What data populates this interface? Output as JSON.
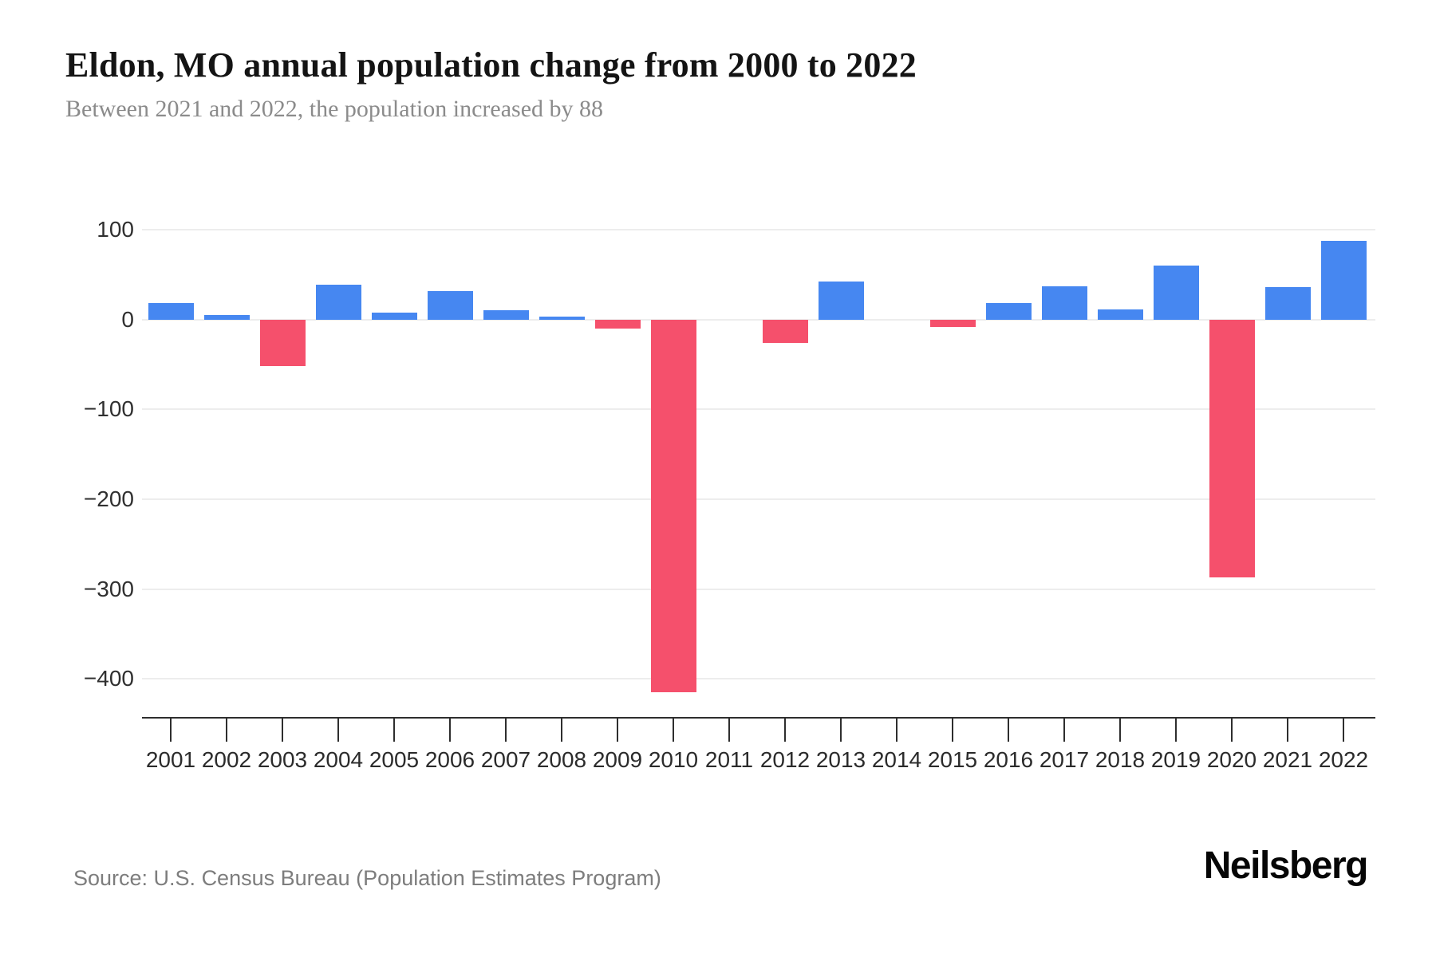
{
  "header": {
    "title": "Eldon, MO annual population change from 2000 to 2022",
    "subtitle": "Between 2021 and 2022, the population increased by 88"
  },
  "footer": {
    "source": "Source: U.S. Census Bureau (Population Estimates Program)",
    "brand": "Neilsberg"
  },
  "chart_data": {
    "type": "bar",
    "title": "Eldon, MO annual population change from 2000 to 2022",
    "subtitle": "Between 2021 and 2022, the population increased by 88",
    "xlabel": "",
    "ylabel": "",
    "categories": [
      "2001",
      "2002",
      "2003",
      "2004",
      "2005",
      "2006",
      "2007",
      "2008",
      "2009",
      "2010",
      "2011",
      "2012",
      "2013",
      "2014",
      "2015",
      "2016",
      "2017",
      "2018",
      "2019",
      "2020",
      "2021",
      "2022"
    ],
    "values": [
      18,
      5,
      -52,
      39,
      8,
      32,
      10,
      3,
      -10,
      -415,
      0,
      -26,
      42,
      0,
      -8,
      18,
      37,
      11,
      60,
      -287,
      36,
      88
    ],
    "ylim": [
      -440,
      120
    ],
    "yticks": [
      100,
      0,
      -100,
      -200,
      -300,
      -400
    ],
    "ytick_labels": [
      "100",
      "0",
      "−100",
      "−200",
      "−300",
      "−400"
    ],
    "grid": true,
    "legend": "none",
    "colors": {
      "positive": "#4687F1",
      "negative": "#F5506C",
      "gridline": "#ededed",
      "axis": "#2e2e2e"
    }
  }
}
